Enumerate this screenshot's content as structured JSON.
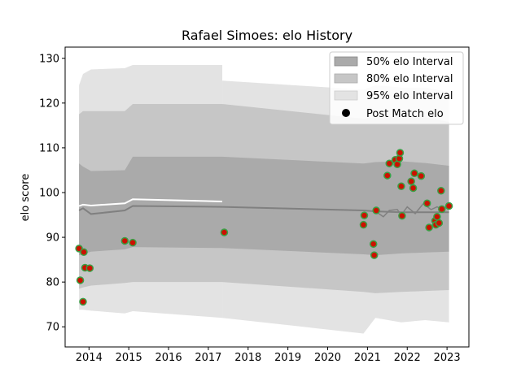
{
  "chart_data": {
    "type": "line",
    "title": "Rafael Simoes: elo History",
    "xlabel": "",
    "ylabel": "elo score",
    "xlim": [
      2013.4,
      2023.55
    ],
    "ylim": [
      65.5,
      132.5
    ],
    "x_ticks": [
      "2014",
      "2015",
      "2016",
      "2017",
      "2018",
      "2019",
      "2020",
      "2021",
      "2022",
      "2023"
    ],
    "y_ticks": [
      "70",
      "80",
      "90",
      "100",
      "110",
      "120",
      "130"
    ],
    "grid": false,
    "legend_position": "top-right",
    "legend": {
      "band50": "50% elo Interval",
      "band80": "80% elo Interval",
      "band95": "95% elo Interval",
      "points": "Post Match elo"
    },
    "colors": {
      "band50": "#aaaaaa",
      "band80": "#c6c6c6",
      "band95": "#e3e3e3",
      "mean_line": "#808080",
      "first_line": "#ffffff",
      "point_fill": "#cc1100",
      "point_edge": "#39a045"
    },
    "segments": [
      {
        "x": [
          2013.75,
          2013.85,
          2014.05,
          2014.9,
          2015.1,
          2017.35
        ],
        "mean": [
          96.0,
          96.5,
          95.2,
          96.0,
          97.0,
          96.8
        ],
        "light_line": [
          97.0,
          97.3,
          97.1,
          97.6,
          98.5,
          98.0
        ],
        "band50": [
          [
            86.0,
            106.5
          ],
          [
            86.2,
            105.8
          ],
          [
            86.8,
            104.8
          ],
          [
            87.3,
            105.0
          ],
          [
            87.8,
            108.0
          ],
          [
            87.6,
            108.0
          ]
        ],
        "band80": [
          [
            78.5,
            117.5
          ],
          [
            78.8,
            118.2
          ],
          [
            79.2,
            118.2
          ],
          [
            79.8,
            118.2
          ],
          [
            80.0,
            119.8
          ],
          [
            80.0,
            119.8
          ]
        ],
        "band95": [
          [
            73.8,
            124.0
          ],
          [
            73.8,
            126.5
          ],
          [
            73.6,
            127.5
          ],
          [
            73.0,
            127.8
          ],
          [
            73.5,
            128.5
          ],
          [
            72.0,
            128.5
          ]
        ]
      },
      {
        "x": [
          2017.35,
          2020.9,
          2021.2,
          2021.85,
          2022.45,
          2023.05
        ],
        "mean": [
          96.8,
          96.0,
          95.8,
          95.6,
          95.6,
          95.6
        ],
        "band50": [
          [
            87.6,
            108.0
          ],
          [
            86.2,
            106.5
          ],
          [
            86.0,
            106.8
          ],
          [
            86.4,
            107.0
          ],
          [
            86.6,
            106.6
          ],
          [
            86.8,
            106.0
          ]
        ],
        "band80": [
          [
            80.0,
            119.8
          ],
          [
            77.8,
            116.5
          ],
          [
            77.5,
            116.8
          ],
          [
            77.8,
            117.0
          ],
          [
            78.0,
            116.8
          ],
          [
            78.2,
            115.8
          ]
        ],
        "band95": [
          [
            72.0,
            125.0
          ],
          [
            68.5,
            123.0
          ],
          [
            72.0,
            124.0
          ],
          [
            71.0,
            123.5
          ],
          [
            71.5,
            123.5
          ],
          [
            71.0,
            122.5
          ]
        ]
      }
    ],
    "mean_line_late": {
      "x": [
        2021.2,
        2021.4,
        2021.55,
        2021.75,
        2021.85,
        2022.0,
        2022.2,
        2022.4,
        2022.6,
        2022.75,
        2022.9,
        2023.05
      ],
      "y": [
        95.8,
        94.6,
        96.0,
        96.2,
        95.0,
        96.8,
        95.3,
        97.5,
        96.2,
        96.8,
        96.2,
        97.0
      ]
    },
    "points": [
      {
        "x": 2013.75,
        "y": 87.5
      },
      {
        "x": 2013.78,
        "y": 80.4
      },
      {
        "x": 2013.85,
        "y": 75.6
      },
      {
        "x": 2013.87,
        "y": 86.7
      },
      {
        "x": 2013.9,
        "y": 83.2
      },
      {
        "x": 2014.02,
        "y": 83.1
      },
      {
        "x": 2014.9,
        "y": 89.2
      },
      {
        "x": 2015.1,
        "y": 88.8
      },
      {
        "x": 2017.4,
        "y": 91.1
      },
      {
        "x": 2020.92,
        "y": 94.9
      },
      {
        "x": 2020.9,
        "y": 92.8
      },
      {
        "x": 2021.15,
        "y": 88.5
      },
      {
        "x": 2021.17,
        "y": 86.0
      },
      {
        "x": 2021.22,
        "y": 96.0
      },
      {
        "x": 2021.5,
        "y": 103.8
      },
      {
        "x": 2021.55,
        "y": 106.5
      },
      {
        "x": 2021.7,
        "y": 107.3
      },
      {
        "x": 2021.75,
        "y": 106.3
      },
      {
        "x": 2021.8,
        "y": 107.6
      },
      {
        "x": 2021.82,
        "y": 108.9
      },
      {
        "x": 2021.85,
        "y": 101.4
      },
      {
        "x": 2021.87,
        "y": 94.8
      },
      {
        "x": 2022.1,
        "y": 102.5
      },
      {
        "x": 2022.15,
        "y": 101.0
      },
      {
        "x": 2022.18,
        "y": 104.3
      },
      {
        "x": 2022.35,
        "y": 103.7
      },
      {
        "x": 2022.5,
        "y": 97.6
      },
      {
        "x": 2022.55,
        "y": 92.2
      },
      {
        "x": 2022.7,
        "y": 93.7
      },
      {
        "x": 2022.72,
        "y": 92.8
      },
      {
        "x": 2022.75,
        "y": 94.6
      },
      {
        "x": 2022.8,
        "y": 93.2
      },
      {
        "x": 2022.85,
        "y": 100.4
      },
      {
        "x": 2022.87,
        "y": 96.3
      },
      {
        "x": 2023.05,
        "y": 97.0
      }
    ]
  }
}
